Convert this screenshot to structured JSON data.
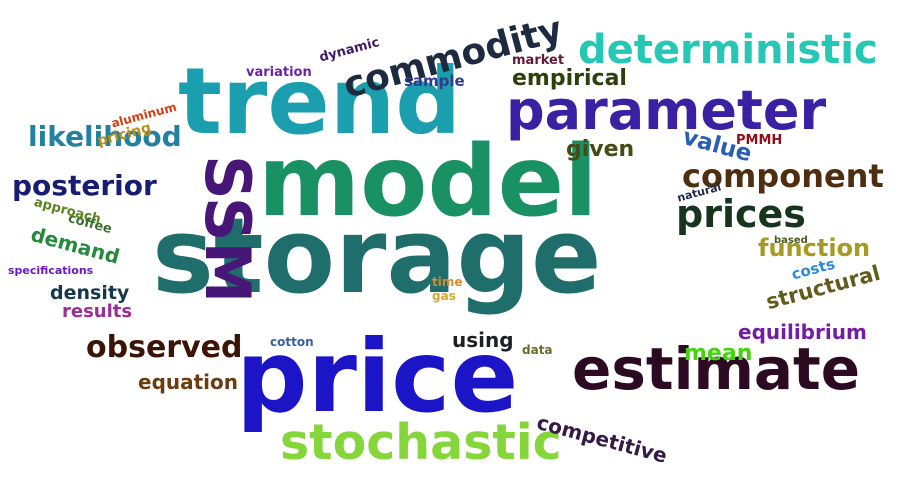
{
  "words": [
    {
      "text": "storage",
      "color": "#1f6e6c",
      "rotation": 0
    },
    {
      "text": "model",
      "color": "#1a9164",
      "rotation": 0
    },
    {
      "text": "price",
      "color": "#1c15c8",
      "rotation": 0
    },
    {
      "text": "trend",
      "color": "#1b9fae",
      "rotation": 0
    },
    {
      "text": "estimate",
      "color": "#2c0a22",
      "rotation": 0
    },
    {
      "text": "parameter",
      "color": "#3a21a4",
      "rotation": 0
    },
    {
      "text": "SSM",
      "color": "#471677",
      "rotation": 90
    },
    {
      "text": "stochastic",
      "color": "#84d63a",
      "rotation": 0
    },
    {
      "text": "prices",
      "color": "#16341e",
      "rotation": 0
    },
    {
      "text": "deterministic",
      "color": "#27c7b6",
      "rotation": 0
    },
    {
      "text": "commodity",
      "color": "#1c2b3f",
      "rotation": -15
    },
    {
      "text": "component",
      "color": "#4f2e10",
      "rotation": 0
    },
    {
      "text": "observed",
      "color": "#3b1405",
      "rotation": 0
    },
    {
      "text": "posterior",
      "color": "#161d72",
      "rotation": 0
    },
    {
      "text": "likelihood",
      "color": "#2181a0",
      "rotation": 0
    },
    {
      "text": "function",
      "color": "#a69a23",
      "rotation": 0
    },
    {
      "text": "structural",
      "color": "#605c1c",
      "rotation": -15
    },
    {
      "text": "equilibrium",
      "color": "#741ca4",
      "rotation": 0
    },
    {
      "text": "value",
      "color": "#2a5fb0",
      "rotation": 15
    },
    {
      "text": "given",
      "color": "#444b14",
      "rotation": 0
    },
    {
      "text": "empirical",
      "color": "#2e3f0c",
      "rotation": 0
    },
    {
      "text": "mean",
      "color": "#44d40e",
      "rotation": 0
    },
    {
      "text": "competitive",
      "color": "#351a46",
      "rotation": 15
    },
    {
      "text": "equation",
      "color": "#6b3c0f",
      "rotation": 0
    },
    {
      "text": "demand",
      "color": "#258a3c",
      "rotation": 15
    },
    {
      "text": "using",
      "color": "#1d1f24",
      "rotation": 0
    },
    {
      "text": "density",
      "color": "#16384c",
      "rotation": 0
    },
    {
      "text": "results",
      "color": "#9a2d97",
      "rotation": 0
    },
    {
      "text": "sample",
      "color": "#2f3c8e",
      "rotation": 0
    },
    {
      "text": "variation",
      "color": "#6b24a8",
      "rotation": 0
    },
    {
      "text": "dynamic",
      "color": "#3d1a6b",
      "rotation": -15
    },
    {
      "text": "market",
      "color": "#5f1b3a",
      "rotation": 0
    },
    {
      "text": "PMMH",
      "color": "#8d1018",
      "rotation": 0
    },
    {
      "text": "costs",
      "color": "#2e8ad1",
      "rotation": -15
    },
    {
      "text": "approach",
      "color": "#5e8322",
      "rotation": 15
    },
    {
      "text": "coffee",
      "color": "#3c6e30",
      "rotation": 15
    },
    {
      "text": "pricing",
      "color": "#bb8f1a",
      "rotation": -15
    },
    {
      "text": "aluminum",
      "color": "#d63c12",
      "rotation": -15
    },
    {
      "text": "specifications",
      "color": "#6a19c4",
      "rotation": 0
    },
    {
      "text": "data",
      "color": "#6a6a2a",
      "rotation": 0
    },
    {
      "text": "time",
      "color": "#d98a2c",
      "rotation": 0
    },
    {
      "text": "gas",
      "color": "#d5a82e",
      "rotation": 0
    },
    {
      "text": "cotton",
      "color": "#3a5fa0",
      "rotation": 0
    },
    {
      "text": "natural",
      "color": "#1d2a4a",
      "rotation": -15
    },
    {
      "text": "based",
      "color": "#4a5a20",
      "rotation": 0
    }
  ]
}
